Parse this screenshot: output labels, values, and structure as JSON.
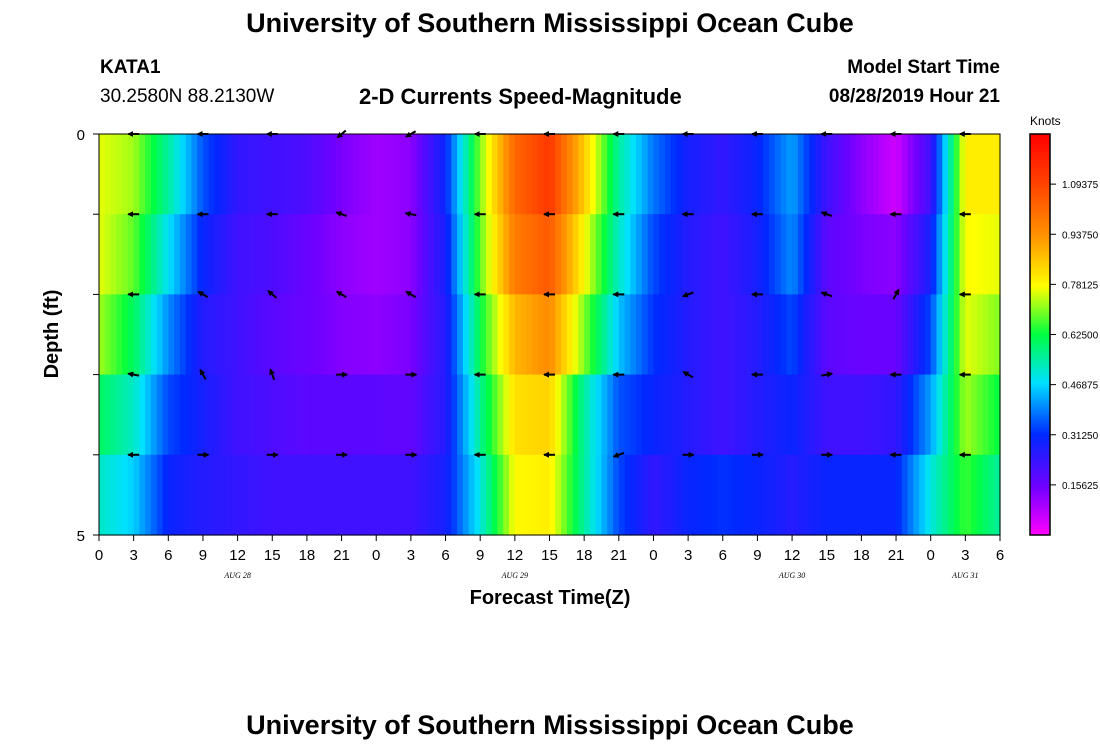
{
  "page": {
    "title_top": "University of Southern Mississippi Ocean Cube",
    "station": "KATA1",
    "coords": "30.2580N 88.2130W",
    "subtitle": "2-D Currents Speed-Magnitude",
    "model_start_label": "Model Start Time",
    "model_start_value": "08/28/2019 Hour 21",
    "title_bottom": "University of Southern Mississippi Ocean Cube"
  },
  "chart_data": {
    "type": "heatmap",
    "xlabel": "Forecast Time(Z)",
    "ylabel": "Depth (ft)",
    "ylim": [
      0,
      5
    ],
    "y_tick_labels": [
      "0",
      "5"
    ],
    "x_tick_labels": [
      "0",
      "3",
      "6",
      "9",
      "12",
      "15",
      "18",
      "21",
      "0",
      "3",
      "6",
      "9",
      "12",
      "15",
      "18",
      "21",
      "0",
      "3",
      "6",
      "9",
      "12",
      "15",
      "18",
      "21",
      "0",
      "3",
      "6"
    ],
    "day_labels": [
      {
        "label": "AUG 28",
        "tick_index": 4
      },
      {
        "label": "AUG 29",
        "tick_index": 12
      },
      {
        "label": "AUG 30",
        "tick_index": 20
      },
      {
        "label": "AUG 31",
        "tick_index": 25
      }
    ],
    "colorbar": {
      "unit": "Knots",
      "range": [
        0,
        1.25
      ],
      "tick_values": [
        0.15625,
        0.3125,
        0.46875,
        0.625,
        0.78125,
        0.9375,
        1.09375
      ],
      "tick_labels": [
        "0.15625",
        "0.31250",
        "0.46875",
        "0.62500",
        "0.78125",
        "0.93750",
        "1.09375"
      ]
    },
    "hours": [
      0,
      3,
      6,
      9,
      12,
      15,
      18,
      21,
      24,
      27,
      30,
      33,
      36,
      39,
      42,
      45,
      48,
      51,
      54,
      57,
      60,
      63,
      66,
      69,
      72,
      75,
      78
    ],
    "depth_rows": [
      "0-1 ft",
      "1-2 ft",
      "2-3 ft",
      "3-4 ft",
      "4-5 ft"
    ],
    "speed_knots": [
      [
        0.76,
        0.72,
        0.55,
        0.35,
        0.24,
        0.22,
        0.2,
        0.14,
        0.1,
        0.12,
        0.3,
        0.7,
        1.02,
        1.12,
        0.85,
        0.55,
        0.38,
        0.28,
        0.24,
        0.3,
        0.42,
        0.22,
        0.12,
        0.05,
        0.22,
        0.8,
        0.8
      ],
      [
        0.76,
        0.68,
        0.48,
        0.3,
        0.22,
        0.2,
        0.16,
        0.12,
        0.1,
        0.12,
        0.28,
        0.68,
        0.98,
        1.05,
        0.78,
        0.52,
        0.34,
        0.26,
        0.22,
        0.28,
        0.4,
        0.18,
        0.14,
        0.12,
        0.28,
        0.78,
        0.76
      ],
      [
        0.72,
        0.6,
        0.4,
        0.26,
        0.22,
        0.18,
        0.16,
        0.13,
        0.12,
        0.14,
        0.26,
        0.62,
        0.88,
        0.95,
        0.7,
        0.45,
        0.32,
        0.26,
        0.22,
        0.26,
        0.34,
        0.18,
        0.16,
        0.16,
        0.34,
        0.76,
        0.7
      ],
      [
        0.6,
        0.52,
        0.34,
        0.28,
        0.22,
        0.2,
        0.18,
        0.18,
        0.18,
        0.17,
        0.26,
        0.56,
        0.82,
        0.84,
        0.55,
        0.35,
        0.3,
        0.26,
        0.22,
        0.26,
        0.3,
        0.22,
        0.22,
        0.24,
        0.42,
        0.72,
        0.62
      ],
      [
        0.52,
        0.46,
        0.3,
        0.26,
        0.24,
        0.22,
        0.22,
        0.22,
        0.22,
        0.22,
        0.28,
        0.5,
        0.78,
        0.8,
        0.55,
        0.34,
        0.24,
        0.3,
        0.32,
        0.3,
        0.26,
        0.3,
        0.3,
        0.3,
        0.5,
        0.66,
        0.55
      ]
    ],
    "direction_deg": [
      [
        180,
        180,
        180,
        180,
        180,
        180,
        210,
        220,
        225,
        210,
        180,
        180,
        180,
        180,
        180,
        180,
        180,
        180,
        180,
        180,
        180,
        180,
        180,
        180,
        180,
        180,
        180
      ],
      [
        180,
        180,
        180,
        180,
        190,
        180,
        150,
        160,
        150,
        170,
        180,
        180,
        180,
        180,
        180,
        180,
        180,
        180,
        180,
        180,
        180,
        160,
        70,
        180,
        180,
        180,
        180
      ],
      [
        180,
        180,
        170,
        150,
        160,
        140,
        150,
        150,
        140,
        150,
        180,
        180,
        180,
        180,
        180,
        180,
        180,
        200,
        200,
        180,
        180,
        160,
        60,
        60,
        180,
        180,
        180
      ],
      [
        180,
        170,
        170,
        120,
        120,
        110,
        100,
        0,
        0,
        0,
        110,
        180,
        180,
        180,
        180,
        180,
        110,
        150,
        180,
        180,
        180,
        10,
        30,
        180,
        180,
        180,
        180
      ],
      [
        180,
        180,
        220,
        0,
        0,
        0,
        0,
        0,
        0,
        0,
        180,
        180,
        180,
        180,
        180,
        200,
        0,
        0,
        0,
        0,
        0,
        0,
        0,
        180,
        180,
        180,
        180
      ]
    ]
  }
}
